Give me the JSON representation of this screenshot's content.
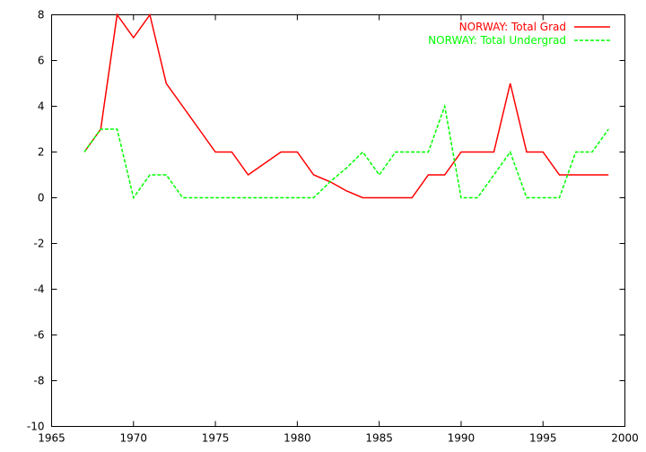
{
  "chart_data": {
    "type": "line",
    "title": "",
    "xlabel": "",
    "ylabel": "",
    "xlim": [
      1965,
      2000
    ],
    "ylim": [
      -10,
      8
    ],
    "xticks": [
      1965,
      1970,
      1975,
      1980,
      1985,
      1990,
      1995,
      2000
    ],
    "yticks": [
      -10,
      -8,
      -6,
      -4,
      -2,
      0,
      2,
      4,
      6,
      8
    ],
    "grid": false,
    "legend_position": "top-right",
    "series": [
      {
        "name": "NORWAY: Total Grad",
        "color": "#ff0000",
        "dash": "solid",
        "x": [
          1967,
          1968,
          1969,
          1970,
          1971,
          1972,
          1973,
          1974,
          1975,
          1976,
          1977,
          1978,
          1979,
          1980,
          1981,
          1982,
          1983,
          1984,
          1985,
          1986,
          1987,
          1988,
          1989,
          1990,
          1991,
          1992,
          1993,
          1994,
          1995,
          1996,
          1997,
          1998,
          1999
        ],
        "y": [
          2,
          3,
          8,
          7,
          8,
          5,
          4,
          3,
          2,
          2,
          1,
          1.5,
          2,
          2,
          1,
          0.7,
          0.3,
          0,
          0,
          0,
          0,
          1,
          1,
          2,
          2,
          2,
          5,
          2,
          2,
          1,
          1,
          1,
          1
        ]
      },
      {
        "name": "NORWAY: Total Undergrad",
        "color": "#00ff00",
        "dash": "dashed",
        "x": [
          1967,
          1968,
          1969,
          1970,
          1971,
          1972,
          1973,
          1974,
          1975,
          1976,
          1977,
          1978,
          1979,
          1980,
          1981,
          1982,
          1983,
          1984,
          1985,
          1986,
          1987,
          1988,
          1989,
          1990,
          1991,
          1992,
          1993,
          1994,
          1995,
          1996,
          1997,
          1998,
          1999
        ],
        "y": [
          2,
          3,
          3,
          0,
          1,
          1,
          0,
          0,
          0,
          0,
          0,
          0,
          0,
          0,
          0,
          0.7,
          1.3,
          2,
          1,
          2,
          2,
          2,
          4,
          0,
          0,
          1,
          2,
          0,
          0,
          0,
          2,
          2,
          3
        ]
      }
    ]
  }
}
